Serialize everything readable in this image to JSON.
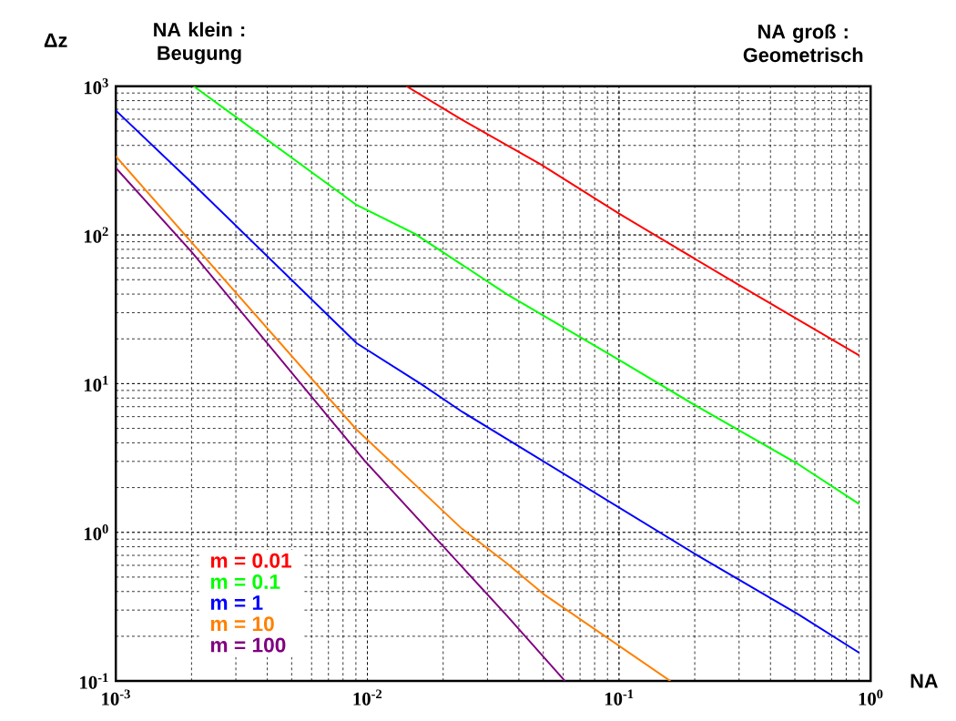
{
  "chart_data": {
    "type": "line",
    "xlabel": "NA",
    "ylabel": "Δz",
    "annotations": [
      "NA klein : Beugung",
      "NA groß : Geometrisch"
    ],
    "log": "xy",
    "grid": true,
    "legend": "bottom left",
    "marker": "none",
    "line_style": "solid",
    "xlim": [
      0.001,
      1
    ],
    "ylim": [
      0.1,
      1000
    ],
    "xticks": [
      {
        "value": 0.001,
        "label": "10$^{-3}$"
      },
      {
        "value": 0.01,
        "label": "10$^{-2}$"
      },
      {
        "value": 0.1,
        "label": "10$^{-1}$"
      },
      {
        "value": 1,
        "label": "10$^{0}$"
      }
    ],
    "yticks": [
      {
        "value": 0.1,
        "label": "10$^{-1}$"
      },
      {
        "value": 1,
        "label": "10$^{0}$"
      },
      {
        "value": 10,
        "label": "10$^{1}$"
      },
      {
        "value": 100,
        "label": "10$^{2}$"
      },
      {
        "value": 1000,
        "label": "10$^{3}$"
      }
    ],
    "series": [
      {
        "name": "m = 0.01",
        "color": "#ff0000",
        "x": [
          0.0143,
          0.0237,
          0.0489,
          0.1,
          0.3,
          0.9
        ],
        "values": [
          1000,
          597,
          298,
          139,
          46,
          15.5
        ]
      },
      {
        "name": "m = 0.1",
        "color": "#00ff00",
        "x": [
          0.00204,
          0.00906,
          0.0154,
          0.0358,
          0.099,
          0.205,
          0.518,
          0.9
        ],
        "values": [
          1000,
          159,
          102,
          40,
          14.6,
          7,
          2.86,
          1.55
        ]
      },
      {
        "name": "m = 1",
        "color": "#0000ff",
        "x": [
          0.001,
          0.002,
          0.00906,
          0.0164,
          0.0237,
          0.205,
          0.518,
          0.9
        ],
        "values": [
          687,
          225,
          18.7,
          9.9,
          6.5,
          0.7,
          0.28,
          0.155
        ]
      },
      {
        "name": "m = 10",
        "color": "#ff8000",
        "x": [
          0.001,
          0.00906,
          0.0237,
          0.0358,
          0.0506,
          0.16
        ],
        "values": [
          338,
          4.9,
          1.06,
          0.62,
          0.38,
          0.1
        ]
      },
      {
        "name": "m = 100",
        "color": "#800080",
        "x": [
          0.001,
          0.002,
          0.0098,
          0.0358,
          0.061
        ],
        "values": [
          282,
          77,
          3.0,
          0.276,
          0.1
        ]
      }
    ]
  }
}
